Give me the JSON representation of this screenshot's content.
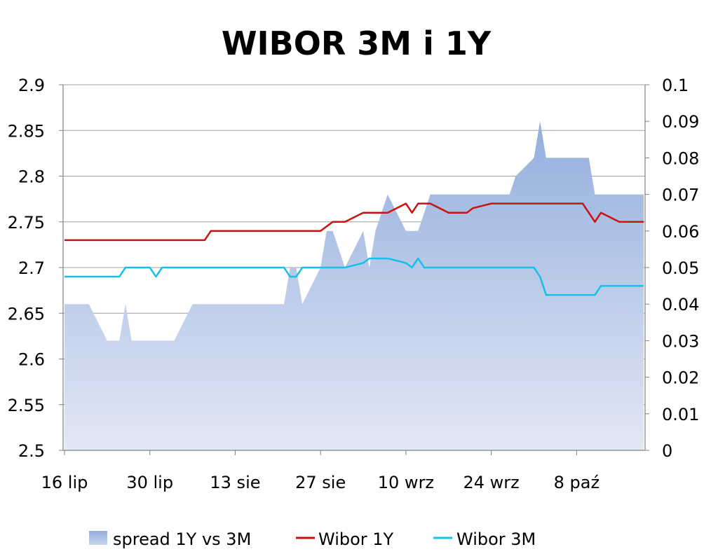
{
  "chart_data": {
    "type": "line",
    "title": "WIBOR 3M i 1Y",
    "x_tick_labels": [
      "16 lip",
      "30 lip",
      "13 sie",
      "27 sie",
      "10 wrz",
      "24 wrz",
      "8 paź"
    ],
    "y_left": {
      "min": 2.5,
      "max": 2.9,
      "ticks": [
        "2.5",
        "2.55",
        "2.6",
        "2.65",
        "2.7",
        "2.75",
        "2.8",
        "2.85",
        "2.9"
      ]
    },
    "y_right": {
      "min": 0,
      "max": 0.1,
      "ticks": [
        "0",
        "0.01",
        "0.02",
        "0.03",
        "0.04",
        "0.05",
        "0.06",
        "0.07",
        "0.08",
        "0.09",
        "0.1"
      ]
    },
    "grid": true,
    "legend_position": "bottom",
    "x": [
      "2012-07-16",
      "2012-07-17",
      "2012-07-18",
      "2012-07-19",
      "2012-07-20",
      "2012-07-23",
      "2012-07-24",
      "2012-07-25",
      "2012-07-26",
      "2012-07-27",
      "2012-07-30",
      "2012-07-31",
      "2012-08-01",
      "2012-08-02",
      "2012-08-03",
      "2012-08-06",
      "2012-08-07",
      "2012-08-08",
      "2012-08-09",
      "2012-08-10",
      "2012-08-13",
      "2012-08-14",
      "2012-08-16",
      "2012-08-17",
      "2012-08-20",
      "2012-08-21",
      "2012-08-22",
      "2012-08-23",
      "2012-08-24",
      "2012-08-27",
      "2012-08-28",
      "2012-08-29",
      "2012-08-30",
      "2012-08-31",
      "2012-09-03",
      "2012-09-04",
      "2012-09-05",
      "2012-09-06",
      "2012-09-07",
      "2012-09-10",
      "2012-09-11",
      "2012-09-12",
      "2012-09-13",
      "2012-09-14",
      "2012-09-17",
      "2012-09-18",
      "2012-09-19",
      "2012-09-20",
      "2012-09-21",
      "2012-09-24",
      "2012-09-25",
      "2012-09-26",
      "2012-09-27",
      "2012-09-28",
      "2012-10-01",
      "2012-10-02",
      "2012-10-03",
      "2012-10-04",
      "2012-10-05",
      "2012-10-08",
      "2012-10-09",
      "2012-10-10",
      "2012-10-11",
      "2012-10-12",
      "2012-10-15",
      "2012-10-16",
      "2012-10-17",
      "2012-10-18",
      "2012-10-19"
    ],
    "series": [
      {
        "name": "spread 1Y vs 3M",
        "axis": "right",
        "style": "area",
        "color": "#9db5df",
        "values": [
          0.04,
          0.04,
          0.04,
          0.04,
          0.04,
          0.03,
          0.03,
          0.03,
          0.04,
          0.03,
          0.03,
          0.03,
          0.03,
          0.03,
          0.03,
          0.04,
          0.04,
          0.04,
          0.04,
          0.04,
          0.04,
          0.04,
          0.04,
          0.04,
          0.04,
          0.04,
          0.05,
          0.05,
          0.04,
          0.05,
          0.06,
          0.06,
          0.055,
          0.05,
          0.06,
          0.05,
          0.06,
          0.065,
          0.07,
          0.06,
          0.06,
          0.06,
          0.065,
          0.07,
          0.07,
          0.07,
          0.07,
          0.07,
          0.07,
          0.07,
          0.07,
          0.07,
          0.07,
          0.075,
          0.08,
          0.09,
          0.08,
          0.08,
          0.08,
          0.08,
          0.08,
          0.08,
          0.07,
          0.07,
          0.07,
          0.07,
          0.07,
          0.07,
          0.07
        ]
      },
      {
        "name": "Wibor 1Y",
        "axis": "left",
        "style": "line",
        "color": "#cc1111",
        "values": [
          2.73,
          2.73,
          2.73,
          2.73,
          2.73,
          2.73,
          2.73,
          2.73,
          2.73,
          2.73,
          2.73,
          2.73,
          2.73,
          2.73,
          2.73,
          2.73,
          2.73,
          2.73,
          2.74,
          2.74,
          2.74,
          2.74,
          2.74,
          2.74,
          2.74,
          2.74,
          2.74,
          2.74,
          2.74,
          2.74,
          2.745,
          2.75,
          2.75,
          2.75,
          2.76,
          2.76,
          2.76,
          2.76,
          2.76,
          2.77,
          2.76,
          2.77,
          2.77,
          2.77,
          2.76,
          2.76,
          2.76,
          2.76,
          2.765,
          2.77,
          2.77,
          2.77,
          2.77,
          2.77,
          2.77,
          2.77,
          2.77,
          2.77,
          2.77,
          2.77,
          2.77,
          2.76,
          2.75,
          2.76,
          2.75,
          2.75,
          2.75,
          2.75,
          2.75
        ]
      },
      {
        "name": "Wibor 3M",
        "axis": "left",
        "style": "line",
        "color": "#16c0ea",
        "values": [
          2.69,
          2.69,
          2.69,
          2.69,
          2.69,
          2.69,
          2.69,
          2.69,
          2.7,
          2.7,
          2.7,
          2.69,
          2.7,
          2.7,
          2.7,
          2.7,
          2.7,
          2.7,
          2.7,
          2.7,
          2.7,
          2.7,
          2.7,
          2.7,
          2.7,
          2.7,
          2.69,
          2.69,
          2.7,
          2.7,
          2.7,
          2.7,
          2.7,
          2.7,
          2.705,
          2.71,
          2.71,
          2.71,
          2.71,
          2.705,
          2.7,
          2.71,
          2.7,
          2.7,
          2.7,
          2.7,
          2.7,
          2.7,
          2.7,
          2.7,
          2.7,
          2.7,
          2.7,
          2.7,
          2.7,
          2.69,
          2.67,
          2.67,
          2.67,
          2.67,
          2.67,
          2.67,
          2.67,
          2.68,
          2.68,
          2.68,
          2.68,
          2.68,
          2.68
        ]
      }
    ]
  }
}
